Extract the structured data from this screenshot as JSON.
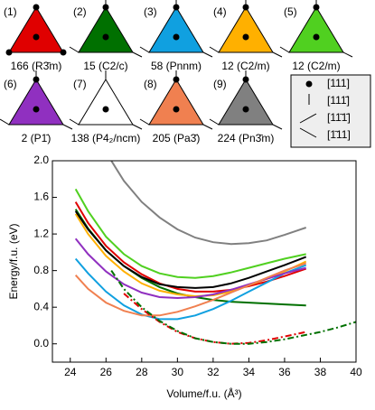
{
  "chart_data": {
    "type": "line",
    "xlabel": "Volume/f.u. (Å³)",
    "ylabel": "Energy/f.u. (eV)",
    "xlim": [
      23,
      40
    ],
    "xticks": [
      24,
      26,
      28,
      30,
      32,
      34,
      36,
      38,
      40
    ],
    "ylim": [
      -0.2,
      2.0
    ],
    "yticks": [
      {
        "value": 0,
        "label": "0.0"
      },
      0.4,
      0.8,
      1.2,
      1.6,
      {
        "value": 2,
        "label": "2.0"
      }
    ],
    "series": [
      {
        "name": "166 (R3̄m)",
        "color": "#e00000",
        "x": [
          24.3,
          25,
          26,
          27,
          28,
          29,
          30,
          31,
          32,
          33,
          34,
          35,
          36,
          37.2
        ],
        "values": [
          1.55,
          1.32,
          1.07,
          0.89,
          0.76,
          0.66,
          0.6,
          0.57,
          0.57,
          0.59,
          0.63,
          0.68,
          0.74,
          0.82
        ]
      },
      {
        "name": "15 (C2/c)",
        "color": "#007000",
        "x": [
          24.3,
          25,
          26,
          27,
          28,
          29,
          30,
          31,
          32,
          33,
          34,
          35,
          36,
          37.2
        ],
        "values": [
          1.47,
          1.26,
          1.02,
          0.85,
          0.72,
          0.62,
          0.55,
          0.51,
          0.48,
          0.46,
          0.45,
          0.44,
          0.43,
          0.42
        ]
      },
      {
        "name": "58 (Pnnm)",
        "color": "#10a0e0",
        "x": [
          24.3,
          25,
          26,
          27,
          28,
          29,
          30,
          31,
          32,
          33,
          34,
          35,
          36,
          37.2
        ],
        "values": [
          0.93,
          0.77,
          0.57,
          0.42,
          0.32,
          0.27,
          0.27,
          0.31,
          0.38,
          0.47,
          0.57,
          0.67,
          0.77,
          0.86
        ]
      },
      {
        "name": "12 (C2/m)",
        "color": "#ffb000",
        "x": [
          24.3,
          25,
          26,
          27,
          28,
          29,
          30,
          31,
          32,
          33,
          34,
          35,
          36,
          37.2
        ],
        "values": [
          1.42,
          1.2,
          0.96,
          0.79,
          0.66,
          0.58,
          0.54,
          0.52,
          0.53,
          0.57,
          0.64,
          0.71,
          0.79,
          0.9
        ]
      },
      {
        "name": "12 (C2/m)",
        "color": "#50d020",
        "x": [
          24.3,
          25,
          26,
          27,
          28,
          29,
          30,
          31,
          32,
          33,
          34,
          35,
          36,
          37.2
        ],
        "values": [
          1.69,
          1.45,
          1.17,
          0.98,
          0.85,
          0.77,
          0.73,
          0.72,
          0.74,
          0.78,
          0.83,
          0.88,
          0.93,
          0.98
        ]
      },
      {
        "name": "2 (P1̄)",
        "color": "#9030c0",
        "x": [
          24.3,
          25,
          26,
          27,
          28,
          29,
          30,
          31,
          32,
          33,
          34,
          35,
          36,
          37.2
        ],
        "values": [
          1.15,
          0.98,
          0.79,
          0.65,
          0.56,
          0.51,
          0.5,
          0.51,
          0.54,
          0.59,
          0.65,
          0.71,
          0.77,
          0.83
        ]
      },
      {
        "name": "138 (P4₂/ncm)",
        "color": "#000000",
        "x": [
          24.3,
          25,
          26,
          27,
          28,
          29,
          30,
          31,
          32,
          33,
          34,
          35,
          36,
          37.2
        ],
        "values": [
          1.45,
          1.25,
          1.02,
          0.85,
          0.73,
          0.65,
          0.62,
          0.61,
          0.62,
          0.66,
          0.72,
          0.79,
          0.86,
          0.95
        ]
      },
      {
        "name": "205 (Pa3̄)",
        "color": "#f08050",
        "x": [
          24.3,
          25,
          26,
          27,
          28,
          29,
          30,
          31,
          32,
          33,
          34,
          35,
          36,
          37.2
        ],
        "values": [
          0.75,
          0.6,
          0.45,
          0.36,
          0.31,
          0.31,
          0.35,
          0.41,
          0.48,
          0.56,
          0.64,
          0.72,
          0.8,
          0.88
        ]
      },
      {
        "name": "224 (Pn3̄m)",
        "color": "#808080",
        "x": [
          26.3,
          27,
          28,
          29,
          30,
          31,
          32,
          33,
          34,
          35,
          36,
          37.2
        ],
        "values": [
          2.0,
          1.78,
          1.55,
          1.38,
          1.25,
          1.16,
          1.11,
          1.09,
          1.1,
          1.13,
          1.19,
          1.27
        ]
      },
      {
        "color": "#e00000",
        "dash": true,
        "x": [
          27,
          28,
          29,
          30,
          31,
          32,
          33,
          34,
          35,
          36,
          37.2
        ],
        "values": [
          0.55,
          0.38,
          0.24,
          0.13,
          0.06,
          0.02,
          0.0,
          0.01,
          0.04,
          0.08,
          0.13
        ]
      },
      {
        "color": "#007000",
        "dash": true,
        "x": [
          26.3,
          27,
          28,
          29,
          30,
          31,
          32,
          33,
          34,
          35,
          36,
          37,
          38,
          39,
          40
        ],
        "values": [
          0.8,
          0.6,
          0.4,
          0.25,
          0.14,
          0.06,
          0.02,
          0.0,
          0.0,
          0.02,
          0.05,
          0.09,
          0.13,
          0.18,
          0.24
        ]
      }
    ]
  },
  "panel_indices": [
    "(1)",
    "(2)",
    "(3)",
    "(4)",
    "(5)",
    "(6)",
    "(7)",
    "(8)",
    "(9)"
  ],
  "direction_legend": [
    "[111]",
    "[111̄]",
    "[11̄1̄]",
    "[1̄11]"
  ]
}
